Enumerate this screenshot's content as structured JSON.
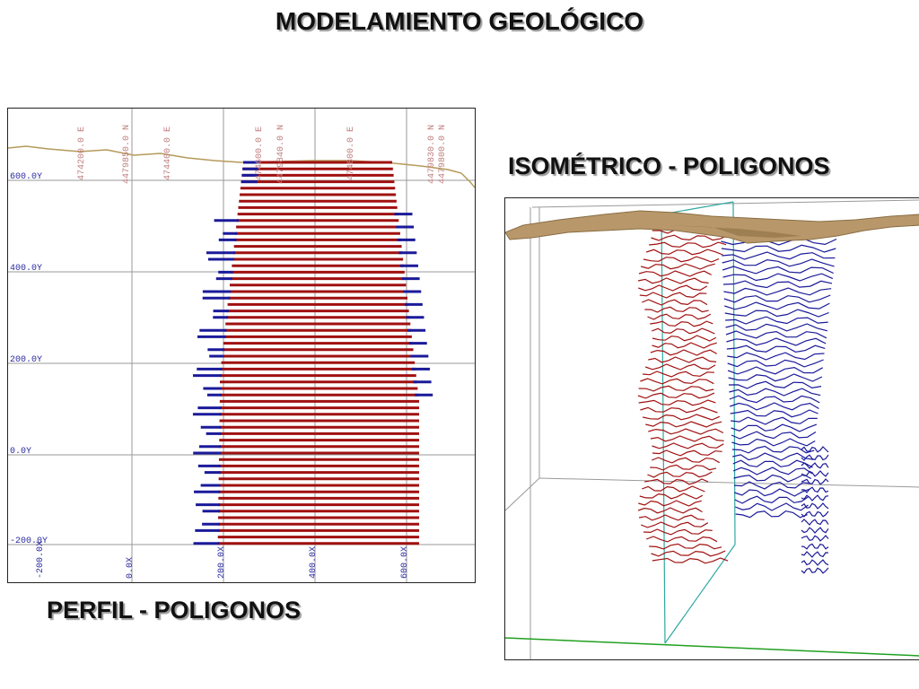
{
  "titles": {
    "main": "MODELAMIENTO GEOLÓGICO",
    "isometric": "ISOMÉTRICO - POLIGONOS",
    "profile": "PERFIL - POLIGONOS"
  },
  "profile": {
    "top_labels": [
      "474200.0 E",
      "4479850.0 N",
      "474400.0 E",
      "474600.0 E",
      "4479840.0 N",
      "474800.0 E",
      "4479830.0 N",
      "4479800.0 N"
    ],
    "y_labels": [
      "600.0Y",
      "400.0Y",
      "200.0Y",
      "0.0Y",
      "-200.0Y"
    ],
    "x_labels": [
      "-200.0X",
      "0.0X",
      "200.0X",
      "400.0X",
      "600.0X"
    ]
  },
  "colors": {
    "red_polygons": "#a01010",
    "blue_polygons": "#1a1a9a",
    "topography": "#b59a5a",
    "grid": "#9a9a9a",
    "label": "#c08080",
    "axis_label": "#2a2aa0",
    "iso_box": "#30a8a0",
    "iso_ground": "#20a020"
  }
}
